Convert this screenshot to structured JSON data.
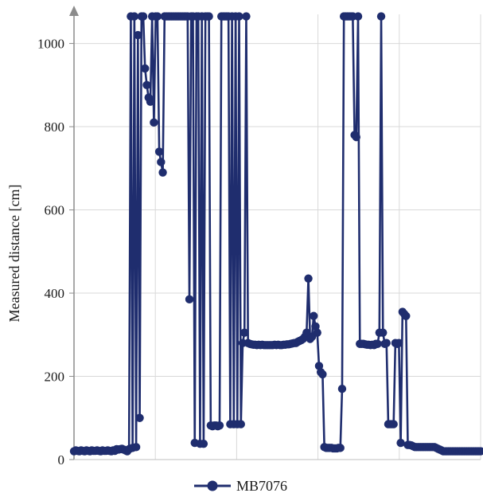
{
  "chart_data": {
    "type": "line",
    "ylabel": "Measured distance [cm]",
    "xlabel": "",
    "ylim": [
      0,
      1070
    ],
    "yticks": [
      0,
      200,
      400,
      600,
      800,
      1000
    ],
    "x_gridlines": 5,
    "grid": "vertical-and-horizontal",
    "legend_position": "bottom",
    "series": [
      {
        "name": "MB7076",
        "color": "#1f2d6e",
        "marker": "circle",
        "values": [
          20,
          22,
          21,
          20,
          22,
          21,
          20,
          22,
          21,
          20,
          22,
          21,
          21,
          22,
          21,
          20,
          22,
          21,
          21,
          22,
          21,
          20,
          22,
          21,
          25,
          24,
          25,
          26,
          24,
          22,
          20,
          25,
          1065,
          28,
          1065,
          30,
          1020,
          100,
          1065,
          1065,
          940,
          900,
          870,
          860,
          1065,
          810,
          1065,
          1065,
          740,
          715,
          690,
          1065,
          1065,
          1065,
          1065,
          1065,
          1065,
          1065,
          1065,
          1065,
          1065,
          1065,
          1065,
          1065,
          1065,
          385,
          1065,
          1065,
          40,
          1065,
          1065,
          38,
          1065,
          38,
          1065,
          1065,
          1065,
          82,
          80,
          82,
          82,
          80,
          82,
          1065,
          1065,
          1065,
          1065,
          1065,
          85,
          1065,
          85,
          1065,
          85,
          1065,
          85,
          280,
          305,
          1065,
          280,
          278,
          277,
          276,
          276,
          275,
          276,
          275,
          276,
          275,
          275,
          275,
          275,
          275,
          275,
          276,
          275,
          276,
          275,
          275,
          276,
          276,
          277,
          277,
          278,
          279,
          280,
          280,
          283,
          285,
          287,
          290,
          295,
          305,
          435,
          290,
          295,
          345,
          320,
          305,
          225,
          210,
          205,
          30,
          28,
          28,
          28,
          28,
          27,
          27,
          27,
          28,
          28,
          170,
          1065,
          1065,
          1065,
          1065,
          1065,
          1065,
          780,
          775,
          1065,
          278,
          278,
          278,
          277,
          276,
          276,
          275,
          276,
          275,
          278,
          278,
          305,
          1065,
          305,
          278,
          280,
          85,
          85,
          85,
          85,
          280,
          278,
          280,
          40,
          355,
          350,
          345,
          35,
          35,
          34,
          32,
          30,
          30,
          30,
          30,
          30,
          30,
          30,
          30,
          30,
          30,
          30,
          30,
          28,
          26,
          24,
          22,
          20,
          20,
          20,
          20,
          20,
          20,
          20,
          20,
          20,
          20,
          20,
          20,
          20,
          20,
          20,
          20,
          20,
          20,
          20,
          20,
          20,
          20
        ]
      }
    ]
  }
}
